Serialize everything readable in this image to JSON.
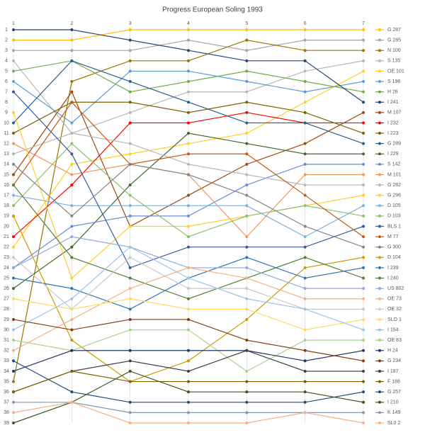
{
  "chart_data": {
    "type": "line",
    "title": "Progress European Soling 1993",
    "x": [
      1,
      2,
      3,
      4,
      5,
      6,
      7
    ],
    "xlim": [
      1,
      7
    ],
    "xticks": [
      1,
      2,
      3,
      4,
      5,
      6,
      7
    ],
    "ylim": [
      39,
      1
    ],
    "yticks": [
      1,
      2,
      3,
      4,
      5,
      6,
      7,
      8,
      9,
      10,
      11,
      12,
      13,
      14,
      15,
      16,
      17,
      18,
      19,
      20,
      21,
      22,
      23,
      24,
      25,
      26,
      27,
      28,
      29,
      30,
      31,
      32,
      33,
      34,
      35,
      36,
      37,
      38,
      39
    ],
    "grid": true,
    "legend": "right",
    "series": [
      {
        "name": "G 287",
        "color": "#ffc000",
        "values": [
          2,
          2,
          1,
          1,
          1,
          1,
          1
        ]
      },
      {
        "name": "G 285",
        "color": "#a5a5a5",
        "values": [
          3,
          3,
          3,
          2,
          3,
          2,
          2
        ]
      },
      {
        "name": "N 100",
        "color": "#997300",
        "values": [
          35,
          6,
          4,
          4,
          2,
          3,
          3
        ]
      },
      {
        "name": "S 135",
        "color": "#b7b7b7",
        "values": [
          4,
          11,
          9,
          7,
          7,
          5,
          4
        ]
      },
      {
        "name": "OE 101",
        "color": "#ffd01f",
        "values": [
          22,
          14,
          13,
          12,
          11,
          8,
          5
        ]
      },
      {
        "name": "S 196",
        "color": "#5b9bd5",
        "values": [
          6,
          10,
          5,
          5,
          6,
          7,
          6
        ]
      },
      {
        "name": "H 26",
        "color": "#70ad47",
        "values": [
          5,
          4,
          7,
          6,
          5,
          6,
          7
        ]
      },
      {
        "name": "I 241",
        "color": "#264478",
        "values": [
          1,
          1,
          2,
          3,
          4,
          4,
          8
        ]
      },
      {
        "name": "M 107",
        "color": "#9e480e",
        "values": [
          15,
          7,
          20,
          17,
          14,
          12,
          9
        ]
      },
      {
        "name": "I 232",
        "color": "#ff0000",
        "values": [
          21,
          16,
          10,
          10,
          9,
          10,
          10
        ]
      },
      {
        "name": "I 223",
        "color": "#7f6000",
        "values": [
          11,
          8,
          8,
          9,
          8,
          9,
          11
        ]
      },
      {
        "name": "G 289",
        "color": "#255e91",
        "values": [
          10,
          4,
          6,
          8,
          10,
          10,
          12
        ]
      },
      {
        "name": "I 229",
        "color": "#43682b",
        "values": [
          26,
          22,
          16,
          11,
          12,
          13,
          13
        ]
      },
      {
        "name": "S 142",
        "color": "#698ed0",
        "values": [
          24,
          20,
          19,
          19,
          16,
          14,
          14
        ]
      },
      {
        "name": "M 101",
        "color": "#f1975a",
        "values": [
          12,
          15,
          14,
          15,
          21,
          15,
          15
        ]
      },
      {
        "name": "G 282",
        "color": "#b7b7b7",
        "values": [
          13,
          11,
          12,
          14,
          15,
          16,
          16
        ]
      },
      {
        "name": "G 296",
        "color": "#ffcd33",
        "values": [
          9,
          25,
          20,
          20,
          19,
          18,
          17
        ]
      },
      {
        "name": "D 105",
        "color": "#7cafdd",
        "values": [
          17,
          18,
          18,
          18,
          18,
          21,
          18
        ]
      },
      {
        "name": "D 103",
        "color": "#8cc168",
        "values": [
          18,
          12,
          17,
          21,
          19,
          18,
          19
        ]
      },
      {
        "name": "BLS 1",
        "color": "#335aa1",
        "values": [
          7,
          13,
          24,
          22,
          22,
          22,
          20
        ]
      },
      {
        "name": "M 77",
        "color": "#c55a11",
        "values": [
          16,
          8,
          14,
          13,
          13,
          17,
          21
        ]
      },
      {
        "name": "G 300",
        "color": "#848484",
        "values": [
          14,
          19,
          14,
          15,
          17,
          20,
          22
        ]
      },
      {
        "name": "D 104",
        "color": "#cc9a00",
        "values": [
          19,
          31,
          35,
          33,
          29,
          24,
          23
        ]
      },
      {
        "name": "I 239",
        "color": "#2e75b6",
        "values": [
          25,
          26,
          28,
          25,
          23,
          25,
          24
        ]
      },
      {
        "name": "I 240",
        "color": "#548235",
        "values": [
          16,
          23,
          25,
          27,
          25,
          23,
          25
        ]
      },
      {
        "name": "US 802",
        "color": "#8faadc",
        "values": [
          24,
          21,
          22,
          24,
          24,
          26,
          26
        ]
      },
      {
        "name": "OE 73",
        "color": "#f4b183",
        "values": [
          32,
          29,
          26,
          24,
          25,
          27,
          27
        ]
      },
      {
        "name": "OE 32",
        "color": "#c9c9c9",
        "values": [
          23,
          28,
          23,
          26,
          26,
          28,
          28
        ]
      },
      {
        "name": "SLO 1",
        "color": "#ffd966",
        "values": [
          27,
          28,
          27,
          28,
          28,
          30,
          29
        ]
      },
      {
        "name": "I 154",
        "color": "#9dc3e6",
        "values": [
          30,
          27,
          22,
          25,
          27,
          28,
          30
        ]
      },
      {
        "name": "OE 83",
        "color": "#a9d18e",
        "values": [
          31,
          32,
          30,
          30,
          34,
          31,
          31
        ]
      },
      {
        "name": "H 24",
        "color": "#203864",
        "values": [
          34,
          32,
          32,
          32,
          32,
          33,
          32
        ]
      },
      {
        "name": "G 234",
        "color": "#843c0c",
        "values": [
          29,
          30,
          29,
          29,
          31,
          32,
          33
        ]
      },
      {
        "name": "I 187",
        "color": "#404040",
        "values": [
          36,
          34,
          33,
          34,
          32,
          34,
          34
        ]
      },
      {
        "name": "F 188",
        "color": "#7f6000",
        "values": [
          36,
          34,
          35,
          35,
          35,
          35,
          35
        ]
      },
      {
        "name": "G 257",
        "color": "#1f4e79",
        "values": [
          33,
          36,
          37,
          37,
          37,
          37,
          36
        ]
      },
      {
        "name": "I 210",
        "color": "#385723",
        "values": [
          39,
          37,
          34,
          36,
          36,
          36,
          37
        ]
      },
      {
        "name": "K 149",
        "color": "#8497b0",
        "values": [
          37,
          37,
          38,
          38,
          38,
          38,
          38
        ]
      },
      {
        "name": "SL0 2",
        "color": "#f4b183",
        "values": [
          38,
          37,
          39,
          39,
          39,
          38,
          39
        ]
      }
    ]
  }
}
